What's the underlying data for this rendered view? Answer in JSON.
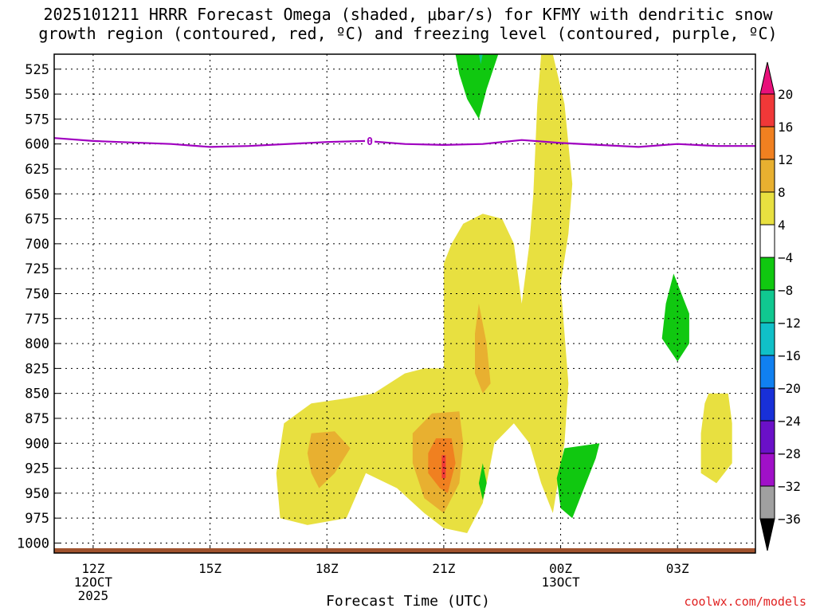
{
  "title": {
    "line1": "2025101211 HRRR Forecast Omega (shaded, μbar/s) for KFMY with dendritic snow",
    "line2": "growth region (contoured, red, ºC) and freezing level (contoured, purple, ºC)"
  },
  "credit": "coolwx.com/models",
  "chart_data": {
    "type": "heatmap",
    "xlabel": "Forecast Time (UTC)",
    "ylabel": "",
    "x_ticks": [
      {
        "hour": 12,
        "label": "12Z",
        "sub1": "12OCT",
        "sub2": "2025"
      },
      {
        "hour": 15,
        "label": "15Z",
        "sub1": "",
        "sub2": ""
      },
      {
        "hour": 18,
        "label": "18Z",
        "sub1": "",
        "sub2": ""
      },
      {
        "hour": 21,
        "label": "21Z",
        "sub1": "",
        "sub2": ""
      },
      {
        "hour": 24,
        "label": "00Z",
        "sub1": "13OCT",
        "sub2": ""
      },
      {
        "hour": 27,
        "label": "03Z",
        "sub1": "",
        "sub2": ""
      }
    ],
    "xlim": [
      11,
      29
    ],
    "y_ticks": [
      "525",
      "550",
      "575",
      "600",
      "625",
      "650",
      "675",
      "700",
      "725",
      "750",
      "775",
      "800",
      "825",
      "850",
      "875",
      "900",
      "925",
      "950",
      "975",
      "1000"
    ],
    "ylim": [
      510,
      1010
    ],
    "grid": true,
    "colorbar": {
      "labels": [
        "20",
        "16",
        "12",
        "8",
        "4",
        "−4",
        "−8",
        "−12",
        "−16",
        "−20",
        "−24",
        "−28",
        "−32",
        "−36"
      ],
      "colors": [
        "#e8107a",
        "#f03838",
        "#f08020",
        "#e8b030",
        "#e8e040",
        "#ffffff",
        "#10c810",
        "#10c890",
        "#10c0c8",
        "#1080f0",
        "#1830d8",
        "#6a10c8",
        "#a010c8",
        "#a0a0a0",
        "#000000"
      ]
    },
    "freezing_level": {
      "label": "0",
      "color": "#a000c0",
      "points": [
        [
          11,
          594
        ],
        [
          12,
          597
        ],
        [
          14,
          600
        ],
        [
          15,
          603
        ],
        [
          16,
          602
        ],
        [
          18,
          598
        ],
        [
          19,
          597
        ],
        [
          20,
          600
        ],
        [
          21,
          601
        ],
        [
          22,
          600
        ],
        [
          23,
          596
        ],
        [
          24,
          599
        ],
        [
          25,
          601
        ],
        [
          26,
          603
        ],
        [
          27,
          600
        ],
        [
          28,
          602
        ],
        [
          29,
          602
        ]
      ]
    },
    "omega_regions": [
      {
        "name": "ascent-upper-column",
        "level": 4,
        "color": "#e8e040",
        "points": [
          [
            23.8,
            510
          ],
          [
            24.1,
            560
          ],
          [
            24.3,
            640
          ],
          [
            24.2,
            690
          ],
          [
            24.0,
            740
          ],
          [
            24.1,
            790
          ],
          [
            24.2,
            840
          ],
          [
            24.1,
            900
          ],
          [
            23.8,
            970
          ],
          [
            23.5,
            940
          ],
          [
            23.2,
            900
          ],
          [
            22.8,
            880
          ],
          [
            22.3,
            900
          ],
          [
            22.0,
            960
          ],
          [
            21.6,
            990
          ],
          [
            21.0,
            985
          ],
          [
            20.5,
            970
          ],
          [
            19.8,
            945
          ],
          [
            19.0,
            930
          ],
          [
            18.5,
            975
          ],
          [
            17.5,
            982
          ],
          [
            16.8,
            975
          ],
          [
            16.7,
            930
          ],
          [
            16.9,
            880
          ],
          [
            17.6,
            860
          ],
          [
            18.5,
            855
          ],
          [
            19.2,
            850
          ],
          [
            20.0,
            830
          ],
          [
            20.5,
            825
          ],
          [
            21.0,
            825
          ],
          [
            21.0,
            780
          ],
          [
            21.0,
            720
          ],
          [
            21.2,
            700
          ],
          [
            21.5,
            680
          ],
          [
            22.0,
            670
          ],
          [
            22.5,
            675
          ],
          [
            22.8,
            700
          ],
          [
            23.0,
            760
          ],
          [
            23.2,
            700
          ],
          [
            23.3,
            650
          ],
          [
            23.4,
            560
          ],
          [
            23.5,
            510
          ]
        ]
      },
      {
        "name": "ascent-low-right",
        "level": 4,
        "color": "#e8e040",
        "points": [
          [
            27.8,
            850
          ],
          [
            28.3,
            850
          ],
          [
            28.4,
            880
          ],
          [
            28.4,
            920
          ],
          [
            28.0,
            940
          ],
          [
            27.6,
            930
          ],
          [
            27.6,
            890
          ],
          [
            27.7,
            860
          ]
        ]
      },
      {
        "name": "ascent-18z-core",
        "level": 8,
        "color": "#e8b030",
        "points": [
          [
            17.6,
            890
          ],
          [
            18.2,
            888
          ],
          [
            18.6,
            905
          ],
          [
            18.2,
            930
          ],
          [
            17.8,
            945
          ],
          [
            17.6,
            930
          ],
          [
            17.5,
            910
          ]
        ]
      },
      {
        "name": "ascent-21z-core",
        "level": 8,
        "color": "#e8b030",
        "points": [
          [
            20.7,
            870
          ],
          [
            21.4,
            868
          ],
          [
            21.5,
            900
          ],
          [
            21.4,
            940
          ],
          [
            21.0,
            970
          ],
          [
            20.5,
            955
          ],
          [
            20.2,
            920
          ],
          [
            20.2,
            890
          ]
        ]
      },
      {
        "name": "ascent-22z-streak",
        "level": 8,
        "color": "#e8b030",
        "points": [
          [
            21.9,
            760
          ],
          [
            22.1,
            800
          ],
          [
            22.2,
            840
          ],
          [
            22.0,
            850
          ],
          [
            21.8,
            830
          ],
          [
            21.8,
            790
          ]
        ]
      },
      {
        "name": "ascent-21z-max",
        "level": 12,
        "color": "#f08020",
        "points": [
          [
            20.8,
            895
          ],
          [
            21.2,
            895
          ],
          [
            21.3,
            920
          ],
          [
            21.1,
            950
          ],
          [
            20.9,
            945
          ],
          [
            20.6,
            930
          ],
          [
            20.6,
            910
          ]
        ]
      },
      {
        "name": "ascent-21z-peak",
        "level": 16,
        "color": "#f03838",
        "points": [
          [
            20.95,
            912
          ],
          [
            21.05,
            912
          ],
          [
            21.05,
            935
          ],
          [
            20.95,
            935
          ]
        ]
      },
      {
        "name": "descent-top",
        "level": -4,
        "color": "#10c810",
        "points": [
          [
            21.3,
            510
          ],
          [
            22.4,
            510
          ],
          [
            22.1,
            545
          ],
          [
            21.9,
            575
          ],
          [
            21.6,
            555
          ],
          [
            21.4,
            530
          ]
        ]
      },
      {
        "name": "descent-top-core",
        "level": -8,
        "color": "#10c890",
        "points": [
          [
            21.9,
            510
          ],
          [
            22.0,
            510
          ],
          [
            21.95,
            520
          ]
        ]
      },
      {
        "name": "descent-low-00z",
        "level": -4,
        "color": "#10c810",
        "points": [
          [
            24.1,
            905
          ],
          [
            25.0,
            900
          ],
          [
            24.9,
            915
          ],
          [
            24.6,
            945
          ],
          [
            24.3,
            975
          ],
          [
            24.0,
            965
          ],
          [
            23.9,
            935
          ]
        ]
      },
      {
        "name": "descent-small-22z",
        "level": -4,
        "color": "#10c810",
        "points": [
          [
            22.0,
            920
          ],
          [
            22.1,
            940
          ],
          [
            22.0,
            957
          ],
          [
            21.9,
            940
          ]
        ]
      },
      {
        "name": "descent-mid-03z",
        "level": -4,
        "color": "#10c810",
        "points": [
          [
            26.9,
            730
          ],
          [
            27.3,
            770
          ],
          [
            27.3,
            800
          ],
          [
            27.0,
            818
          ],
          [
            26.6,
            795
          ],
          [
            26.7,
            760
          ]
        ]
      }
    ]
  }
}
